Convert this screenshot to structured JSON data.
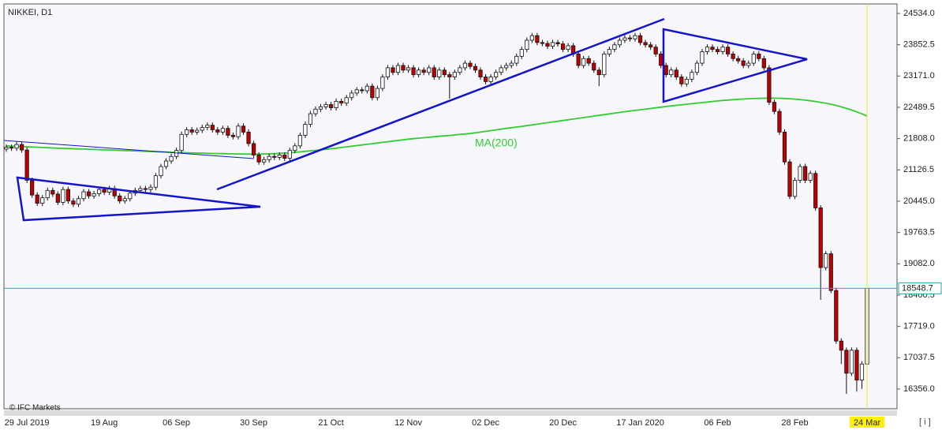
{
  "chart_data": {
    "type": "candlestick",
    "title": "NIKKEI, D1",
    "watermark": "© IFC Markets",
    "categories": [
      null,
      null,
      null,
      null,
      "29 Jul 2019",
      null,
      null,
      null,
      null,
      null,
      null,
      null,
      null,
      null,
      null,
      null,
      null,
      null,
      null,
      "19 Aug",
      null,
      null,
      null,
      null,
      null,
      null,
      null,
      null,
      null,
      null,
      null,
      null,
      null,
      "06 Sep",
      null,
      null,
      null,
      null,
      null,
      null,
      null,
      null,
      null,
      null,
      null,
      null,
      null,
      null,
      "30 Sep",
      null,
      null,
      null,
      null,
      null,
      null,
      null,
      null,
      null,
      null,
      null,
      null,
      null,
      null,
      "21 Oct",
      null,
      null,
      null,
      null,
      null,
      null,
      null,
      null,
      null,
      null,
      null,
      null,
      null,
      null,
      "12 Nov",
      null,
      null,
      null,
      null,
      null,
      null,
      null,
      null,
      null,
      null,
      null,
      null,
      null,
      null,
      "02 Dec",
      null,
      null,
      null,
      null,
      null,
      null,
      null,
      null,
      null,
      null,
      null,
      null,
      null,
      null,
      "20 Dec",
      null,
      null,
      null,
      null,
      null,
      null,
      null,
      null,
      null,
      null,
      null,
      null,
      null,
      null,
      "17 Jan 2020",
      null,
      null,
      null,
      null,
      null,
      null,
      null,
      null,
      null,
      null,
      null,
      null,
      null,
      null,
      "06 Feb",
      null,
      null,
      null,
      null,
      null,
      null,
      null,
      null,
      null,
      null,
      null,
      null,
      null,
      null,
      "28 Feb",
      null,
      null,
      null,
      null,
      null,
      null,
      null,
      null,
      null,
      null,
      null,
      null,
      null,
      "24 Mar"
    ],
    "open": [
      21580,
      21620,
      21600,
      21680,
      21560,
      20900,
      20580,
      20400,
      20520,
      20680,
      20600,
      20420,
      20700,
      20450,
      20380,
      20500,
      20650,
      20560,
      20610,
      20700,
      20640,
      20720,
      20560,
      20450,
      20500,
      20620,
      20680,
      20720,
      20700,
      20750,
      21000,
      21200,
      21320,
      21420,
      21550,
      21900,
      22000,
      21950,
      21990,
      22050,
      22100,
      22000,
      21950,
      22030,
      21880,
      21850,
      22080,
      21950,
      21700,
      21450,
      21300,
      21350,
      21420,
      21400,
      21450,
      21380,
      21550,
      21650,
      21880,
      22120,
      22350,
      22450,
      22500,
      22550,
      22480,
      22620,
      22580,
      22700,
      22800,
      22870,
      22850,
      22950,
      22700,
      22900,
      23150,
      23350,
      23250,
      23400,
      23300,
      23350,
      23200,
      23300,
      23250,
      23350,
      23150,
      23300,
      23200,
      23150,
      23250,
      23350,
      23450,
      23380,
      23300,
      23150,
      23050,
      23150,
      23250,
      23350,
      23400,
      23450,
      23600,
      23750,
      23950,
      24050,
      23900,
      23880,
      23820,
      23900,
      23870,
      23750,
      23830,
      23650,
      23400,
      23550,
      23450,
      23300,
      23200,
      23650,
      23750,
      23850,
      23950,
      24000,
      23980,
      24050,
      23900,
      23850,
      23800,
      23650,
      23400,
      23200,
      23300,
      23150,
      23000,
      23100,
      23250,
      23450,
      23700,
      23800,
      23750,
      23700,
      23800,
      23650,
      23550,
      23500,
      23400,
      23450,
      23650,
      23550,
      23350,
      22600,
      22400,
      21950,
      21300,
      20550,
      20900,
      21200,
      20900,
      21050,
      20300,
      19000,
      19300,
      18500,
      17400,
      17200,
      16700,
      17200,
      16550,
      16900
    ],
    "high": [
      21680,
      21680,
      21740,
      21740,
      21620,
      20960,
      20640,
      20580,
      20740,
      20740,
      20660,
      20760,
      20760,
      20510,
      20560,
      20710,
      20710,
      20670,
      20760,
      20760,
      20780,
      20780,
      20620,
      20560,
      20680,
      20740,
      20780,
      20780,
      20810,
      21060,
      21260,
      21380,
      21480,
      21610,
      21960,
      22060,
      22060,
      22050,
      22110,
      22160,
      22160,
      22060,
      22090,
      22090,
      21940,
      22140,
      22140,
      22010,
      21760,
      21510,
      21410,
      21480,
      21480,
      21510,
      21510,
      21610,
      21710,
      21940,
      22180,
      22410,
      22510,
      22560,
      22610,
      22610,
      22680,
      22680,
      22760,
      22860,
      22930,
      22930,
      23010,
      23010,
      22960,
      23210,
      23410,
      23410,
      23460,
      23460,
      23410,
      23410,
      23360,
      23360,
      23410,
      23410,
      23360,
      23360,
      23260,
      23310,
      23410,
      23510,
      23510,
      23440,
      23360,
      23210,
      23210,
      23310,
      23410,
      23460,
      23510,
      23660,
      23810,
      24010,
      24110,
      24110,
      23960,
      23940,
      23960,
      23960,
      23930,
      23890,
      23890,
      23710,
      23610,
      23610,
      23510,
      23360,
      23710,
      23810,
      23910,
      24010,
      24060,
      24060,
      24110,
      24110,
      23960,
      23910,
      23860,
      23710,
      23460,
      23360,
      23360,
      23210,
      23160,
      23310,
      23510,
      23760,
      23860,
      23860,
      23810,
      23860,
      23860,
      23710,
      23610,
      23560,
      23510,
      23710,
      23710,
      23610,
      23410,
      22660,
      22460,
      22010,
      21360,
      20960,
      21260,
      21260,
      21110,
      21110,
      20360,
      19360,
      19360,
      18560,
      17460,
      17260,
      17260,
      17260,
      16960,
      18600
    ],
    "low": [
      21520,
      21540,
      21540,
      21500,
      20840,
      20520,
      20340,
      20340,
      20460,
      20540,
      20360,
      20360,
      20390,
      20320,
      20320,
      20440,
      20500,
      20500,
      20550,
      20580,
      20580,
      20500,
      20390,
      20390,
      20440,
      20560,
      20620,
      20640,
      20640,
      20690,
      20940,
      21140,
      21260,
      21360,
      21490,
      21840,
      21890,
      21890,
      21930,
      21990,
      21940,
      21890,
      21890,
      21820,
      21790,
      21790,
      21890,
      21640,
      21390,
      21240,
      21240,
      21290,
      21340,
      21340,
      21320,
      21320,
      21490,
      21590,
      21820,
      22060,
      22290,
      22390,
      22440,
      22420,
      22420,
      22520,
      22520,
      22640,
      22740,
      22790,
      22790,
      22640,
      22640,
      22840,
      23090,
      23190,
      23190,
      23240,
      23240,
      23140,
      23140,
      23190,
      23190,
      23090,
      23090,
      23140,
      22680,
      23090,
      23190,
      23290,
      23320,
      23240,
      23090,
      22990,
      22990,
      23090,
      23190,
      23290,
      23340,
      23390,
      23540,
      23690,
      23890,
      23840,
      23820,
      23760,
      23760,
      23810,
      23690,
      23690,
      23590,
      23340,
      23340,
      23390,
      23240,
      22950,
      23140,
      23590,
      23690,
      23790,
      23890,
      23920,
      23920,
      23840,
      23790,
      23740,
      23590,
      23340,
      23140,
      23140,
      23090,
      22940,
      22940,
      23040,
      23190,
      23390,
      23640,
      23690,
      23640,
      23640,
      23590,
      23490,
      23440,
      23340,
      23340,
      23390,
      23490,
      23290,
      22540,
      22340,
      21890,
      21240,
      20490,
      20490,
      20840,
      20840,
      20840,
      20240,
      18300,
      18940,
      18440,
      17340,
      16900,
      16250,
      16640,
      16300,
      16360,
      16850
    ],
    "close": [
      21620,
      21600,
      21680,
      21560,
      20900,
      20580,
      20400,
      20520,
      20680,
      20600,
      20420,
      20700,
      20450,
      20380,
      20500,
      20650,
      20560,
      20610,
      20700,
      20640,
      20720,
      20560,
      20450,
      20500,
      20620,
      20680,
      20720,
      20700,
      20750,
      21000,
      21200,
      21320,
      21420,
      21550,
      21900,
      22000,
      21950,
      21990,
      22050,
      22100,
      22000,
      21950,
      22030,
      21880,
      21850,
      22080,
      21950,
      21700,
      21450,
      21300,
      21350,
      21420,
      21400,
      21450,
      21380,
      21550,
      21650,
      21880,
      22120,
      22350,
      22450,
      22500,
      22550,
      22480,
      22620,
      22580,
      22700,
      22800,
      22870,
      22850,
      22950,
      22700,
      22900,
      23150,
      23350,
      23250,
      23400,
      23300,
      23350,
      23200,
      23300,
      23250,
      23350,
      23150,
      23300,
      23200,
      23150,
      23250,
      23350,
      23450,
      23380,
      23300,
      23150,
      23050,
      23150,
      23250,
      23350,
      23400,
      23450,
      23600,
      23750,
      23950,
      24050,
      23900,
      23880,
      23820,
      23900,
      23870,
      23750,
      23830,
      23650,
      23400,
      23550,
      23450,
      23300,
      23200,
      23650,
      23750,
      23850,
      23950,
      24000,
      23980,
      24050,
      23900,
      23850,
      23800,
      23650,
      23400,
      23200,
      23300,
      23150,
      23000,
      23100,
      23250,
      23450,
      23700,
      23800,
      23750,
      23700,
      23800,
      23650,
      23550,
      23500,
      23400,
      23450,
      23650,
      23550,
      23350,
      22600,
      22400,
      21950,
      21300,
      20550,
      20900,
      21200,
      20900,
      21050,
      20300,
      19000,
      19300,
      18500,
      17400,
      17200,
      16700,
      17200,
      16550,
      16900,
      18550
    ],
    "up_color": "#ffffff",
    "down_color": "#c00000",
    "ma": {
      "name": "MA(200)",
      "color": "#33cc33",
      "values": [
        21650,
        21645,
        21640,
        21635,
        21630,
        21625,
        21620,
        21615,
        21610,
        21605,
        21600,
        21596,
        21592,
        21588,
        21584,
        21580,
        21576,
        21572,
        21568,
        21564,
        21560,
        21556,
        21552,
        21548,
        21544,
        21540,
        21536,
        21532,
        21528,
        21524,
        21520,
        21516,
        21512,
        21508,
        21504,
        21500,
        21497,
        21494,
        21491,
        21488,
        21485,
        21482,
        21480,
        21478,
        21476,
        21474,
        21472,
        21470,
        21470,
        21470,
        21472,
        21476,
        21480,
        21486,
        21492,
        21500,
        21510,
        21520,
        21530,
        21540,
        21552,
        21564,
        21576,
        21588,
        21600,
        21614,
        21628,
        21642,
        21656,
        21670,
        21684,
        21698,
        21712,
        21726,
        21740,
        21754,
        21768,
        21782,
        21796,
        21808,
        21818,
        21828,
        21838,
        21848,
        21858,
        21868,
        21878,
        21888,
        21898,
        21908,
        21918,
        21934,
        21950,
        21966,
        21982,
        21998,
        22014,
        22030,
        22046,
        22060,
        22074,
        22090,
        22106,
        22122,
        22138,
        22154,
        22170,
        22186,
        22202,
        22218,
        22234,
        22250,
        22266,
        22282,
        22298,
        22314,
        22330,
        22346,
        22362,
        22378,
        22394,
        22408,
        22422,
        22436,
        22450,
        22464,
        22478,
        22492,
        22506,
        22520,
        22532,
        22544,
        22556,
        22568,
        22580,
        22592,
        22604,
        22616,
        22628,
        22638,
        22648,
        22656,
        22664,
        22670,
        22676,
        22680,
        22684,
        22686,
        22688,
        22688,
        22686,
        22682,
        22676,
        22668,
        22658,
        22646,
        22632,
        22616,
        22598,
        22578,
        22556,
        22530,
        22500,
        22466,
        22430,
        22390,
        22346,
        22300
      ]
    },
    "last_price": 18548.7,
    "ylim": [
      15926,
      24740
    ],
    "yticks": [
      {
        "value": 24534,
        "label": "24534.0"
      },
      23852.5,
      {
        "value": 23171,
        "label": "23171.0"
      },
      22489.5,
      {
        "value": 21808,
        "label": "21808.0"
      },
      21126.5,
      {
        "value": 20445,
        "label": "20445.0"
      },
      19763.5,
      {
        "value": 19082,
        "label": "19082.0"
      },
      18400.5,
      {
        "value": 17719,
        "label": "17719.0"
      },
      17037.5,
      {
        "value": 16356,
        "label": "16356.0"
      }
    ]
  }
}
